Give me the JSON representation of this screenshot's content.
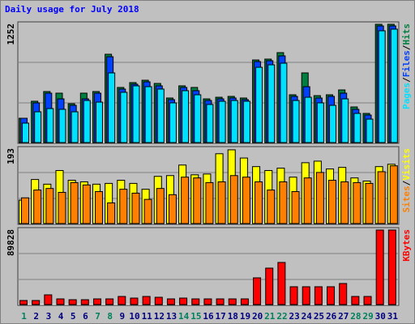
{
  "chart_data": {
    "type": "bar",
    "title": "Daily usage for July 2018",
    "categories": [
      "1",
      "2",
      "3",
      "4",
      "5",
      "6",
      "7",
      "8",
      "9",
      "10",
      "11",
      "12",
      "13",
      "14",
      "15",
      "16",
      "17",
      "18",
      "19",
      "20",
      "21",
      "22",
      "23",
      "24",
      "25",
      "26",
      "27",
      "28",
      "29",
      "30",
      "31"
    ],
    "category_colors": [
      "#00805c",
      "#000080",
      "#000080",
      "#000080",
      "#000080",
      "#000080",
      "#00805c",
      "#00805c",
      "#000080",
      "#000080",
      "#000080",
      "#000080",
      "#000080",
      "#00805c",
      "#00805c",
      "#000080",
      "#000080",
      "#000080",
      "#000080",
      "#000080",
      "#00805c",
      "#00805c",
      "#000080",
      "#000080",
      "#000080",
      "#000080",
      "#000080",
      "#00805c",
      "#00805c",
      "#000080",
      "#000080"
    ],
    "legend_separator": "/",
    "panels": [
      {
        "ylim": [
          0,
          1252
        ],
        "yticks": [
          1252
        ],
        "series": [
          {
            "name": "Hits",
            "color": "#008040",
            "values": [
              264,
              443,
              545,
              528,
              417,
              528,
              545,
              937,
              588,
              639,
              664,
              630,
              477,
              605,
              588,
              468,
              485,
              494,
              477,
              877,
              886,
              954,
              511,
              741,
              502,
              511,
              562,
              383,
              315,
              1252,
              1252
            ]
          },
          {
            "name": "Files",
            "color": "#0040ff",
            "values": [
              264,
              426,
              528,
              468,
              400,
              468,
              528,
              911,
              571,
              622,
              647,
              605,
              460,
              588,
              554,
              451,
              468,
              477,
              460,
              860,
              869,
              920,
              494,
              596,
              477,
              494,
              528,
              358,
              298,
              1235,
              1235
            ]
          },
          {
            "name": "Pages",
            "color": "#00e0ff",
            "values": [
              213,
              332,
              366,
              358,
              332,
              451,
              434,
              741,
              537,
              605,
              596,
              571,
              426,
              554,
              511,
              409,
              443,
              451,
              443,
              800,
              826,
              843,
              451,
              485,
              426,
              400,
              468,
              315,
              255,
              1184,
              1201
            ]
          }
        ]
      },
      {
        "ylim": [
          0,
          193
        ],
        "yticks": [
          193
        ],
        "series": [
          {
            "name": "Visits",
            "color": "#ffff00",
            "values": [
              62,
              115,
              103,
              138,
              113,
              109,
              103,
              105,
              113,
              105,
              90,
              123,
              125,
              152,
              127,
              129,
              181,
              191,
              170,
              148,
              138,
              144,
              121,
              158,
              162,
              142,
              146,
              119,
              111,
              148,
              154
            ]
          },
          {
            "name": "Sites",
            "color": "#ff8000",
            "values": [
              68,
              88,
              92,
              82,
              107,
              101,
              84,
              55,
              90,
              80,
              64,
              92,
              76,
              121,
              119,
              107,
              109,
              125,
              121,
              109,
              88,
              109,
              84,
              119,
              133,
              113,
              109,
              107,
              105,
              135,
              150
            ]
          }
        ]
      },
      {
        "ylim": [
          0,
          89828
        ],
        "yticks": [
          89828
        ],
        "series": [
          {
            "name": "KBytes",
            "color": "#ff0000",
            "values": [
              5800,
              5800,
              12560,
              7730,
              6760,
              6760,
              7730,
              7730,
              10620,
              8690,
              10620,
              9660,
              7730,
              8690,
              7730,
              7730,
              7730,
              7730,
              7730,
              32840,
              44430,
              51190,
              22220,
              22220,
              22220,
              22220,
              26080,
              10620,
              10620,
              89828,
              89828
            ]
          }
        ]
      }
    ]
  }
}
